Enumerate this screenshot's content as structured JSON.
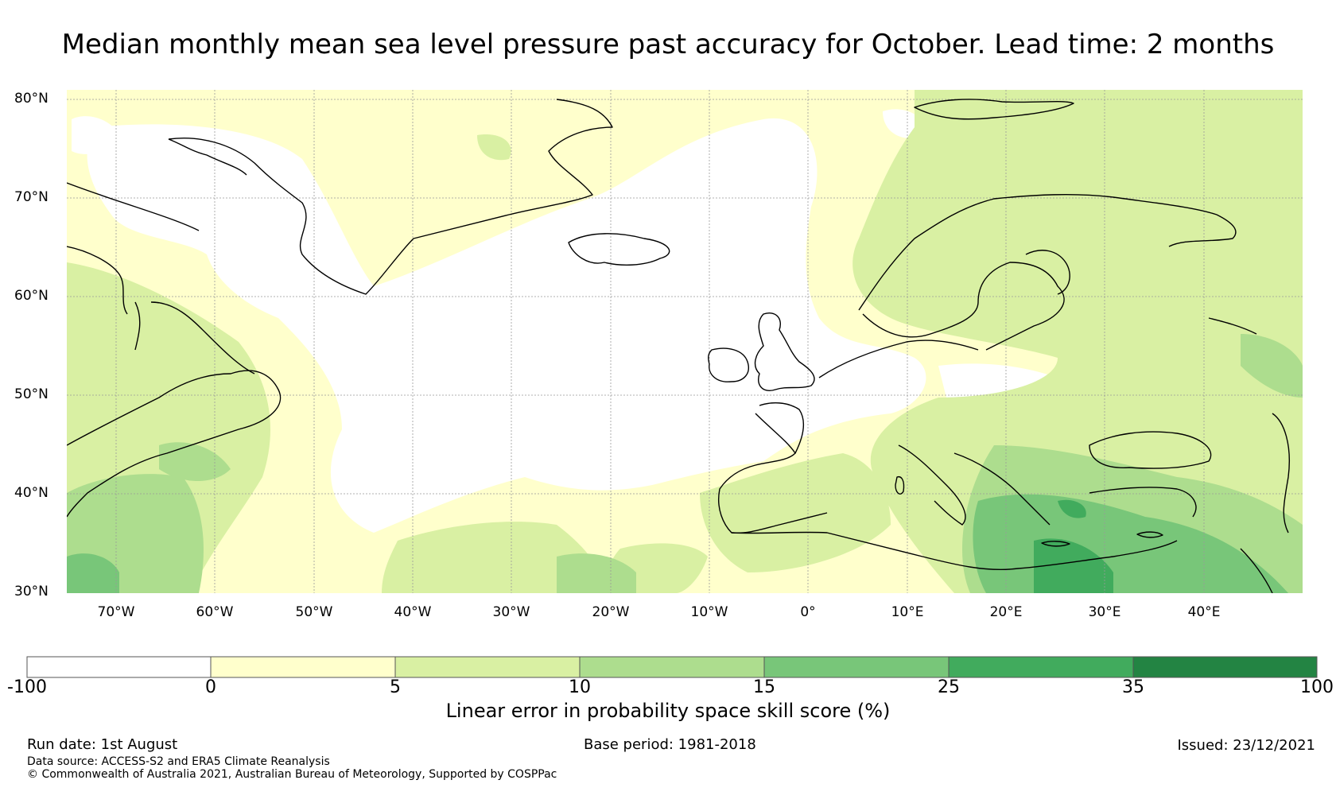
{
  "title": "Median monthly mean sea level pressure past accuracy for October. Lead time: 2 months",
  "map": {
    "lat_ticks": [
      "80°N",
      "70°N",
      "60°N",
      "50°N",
      "40°N",
      "30°N"
    ],
    "lon_ticks": [
      "70°W",
      "60°W",
      "50°W",
      "40°W",
      "30°W",
      "20°W",
      "10°W",
      "0°",
      "10°E",
      "20°E",
      "30°E",
      "40°E"
    ],
    "extent": {
      "lon_min": -75,
      "lon_max": 50,
      "lat_min": 30,
      "lat_max": 81
    }
  },
  "colorbar": {
    "ticks": [
      "-100",
      "0",
      "5",
      "10",
      "15",
      "25",
      "35",
      "100"
    ],
    "colors": [
      "#ffffff",
      "#ffffcc",
      "#d9f0a3",
      "#addd8e",
      "#78c679",
      "#41ab5d",
      "#238443"
    ],
    "label": "Linear error in probability space skill score (%)"
  },
  "footer": {
    "run_date": "Run date: 1st August",
    "base_period": "Base period: 1981-2018",
    "issued": "Issued: 23/12/2021",
    "data_source": "Data source: ACCESS-S2 and ERA5 Climate Reanalysis",
    "copyright": "© Commonwealth of Australia 2021, Australian Bureau of Meteorology, Supported by COSPPac"
  }
}
